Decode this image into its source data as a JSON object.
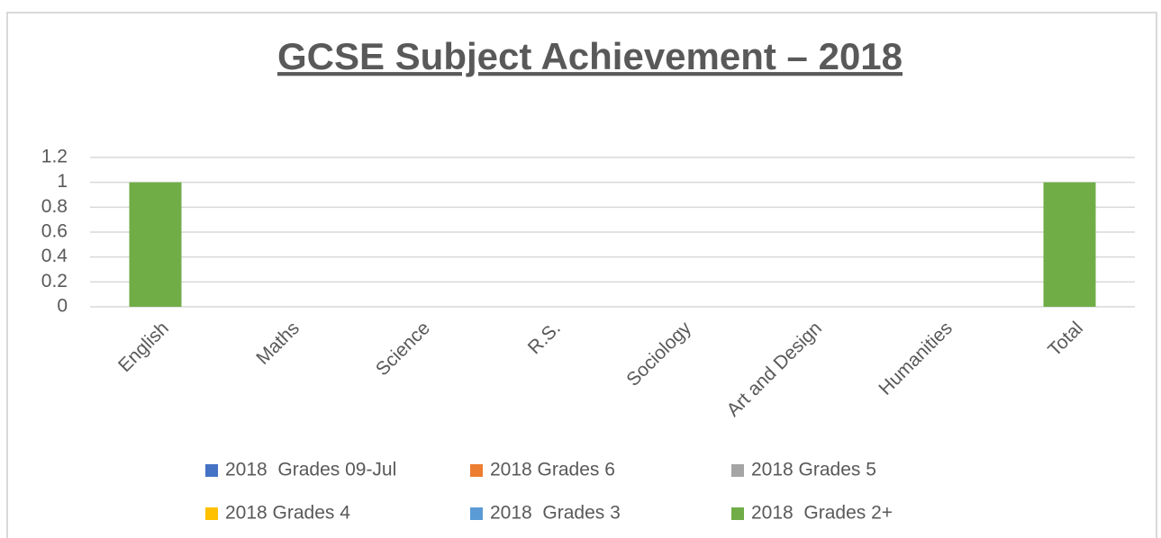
{
  "chart_data": {
    "type": "bar",
    "stacked": true,
    "title": "GCSE Subject Achievement – 2018",
    "categories": [
      "English",
      "Maths",
      "Science",
      "R.S.",
      "Sociology",
      "Art and Design",
      "Humanities",
      "Total"
    ],
    "series": [
      {
        "name": "2018  Grades 09-Jul",
        "color": "#4472c4",
        "values": [
          0,
          0,
          0,
          0,
          0,
          0,
          0,
          0
        ]
      },
      {
        "name": "2018 Grades 6",
        "color": "#ed7d31",
        "values": [
          0,
          0,
          0,
          0,
          0,
          0,
          0,
          0
        ]
      },
      {
        "name": "2018 Grades 5",
        "color": "#a5a5a5",
        "values": [
          0,
          0,
          0,
          0,
          0,
          0,
          0,
          0
        ]
      },
      {
        "name": "2018 Grades 4",
        "color": "#ffc000",
        "values": [
          0,
          0,
          0,
          0,
          0,
          0,
          0,
          0
        ]
      },
      {
        "name": "2018  Grades 3",
        "color": "#5b9bd5",
        "values": [
          0,
          0,
          0,
          0,
          0,
          0,
          0,
          0
        ]
      },
      {
        "name": "2018  Grades 2+",
        "color": "#70ad47",
        "values": [
          1,
          0,
          0,
          0,
          0,
          0,
          0,
          1
        ]
      }
    ],
    "ylim": [
      0,
      1.2
    ],
    "yticks": [
      0,
      0.2,
      0.4,
      0.6,
      0.8,
      1,
      1.2
    ],
    "grid": true,
    "legend": "bottom"
  }
}
